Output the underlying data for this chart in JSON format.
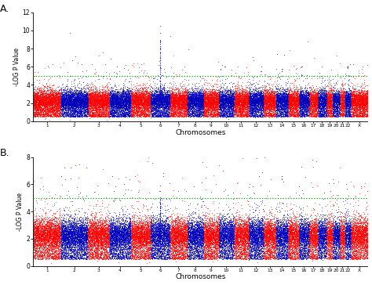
{
  "panel_A": {
    "label": "A.",
    "ylim": [
      0,
      12
    ],
    "yticks": [
      0,
      2,
      4,
      6,
      8,
      10,
      12
    ],
    "threshold": 5.0,
    "ylabel": "-LOG P Value",
    "xlabel": "Chromosomes",
    "peak_chrom": 6,
    "peak_value_max": 10.5,
    "peak_spread": 1.5,
    "extra_peaks": {
      "14": 5.8,
      "22": 6.1
    }
  },
  "panel_B": {
    "label": "B.",
    "ylim": [
      0,
      8
    ],
    "yticks": [
      0,
      2,
      4,
      6,
      8
    ],
    "threshold": 5.0,
    "ylabel": "-LOG P Value",
    "xlabel": "Chromosomes",
    "peak_chrom": 6,
    "peak_value_max": 5.9,
    "peak_spread": 1.2,
    "extra_peaks": {
      "14": 6.6
    }
  },
  "chromosomes": [
    1,
    2,
    3,
    4,
    5,
    6,
    7,
    8,
    9,
    10,
    11,
    12,
    13,
    14,
    15,
    16,
    17,
    18,
    19,
    20,
    21,
    22,
    "X"
  ],
  "chrom_sizes": [
    250,
    243,
    198,
    191,
    182,
    171,
    159,
    146,
    141,
    136,
    135,
    133,
    114,
    107,
    102,
    90,
    81,
    76,
    59,
    63,
    47,
    50,
    155
  ],
  "colors": [
    "#FF0000",
    "#0000BB"
  ],
  "threshold_color": "#00AA00",
  "bg_color": "#ffffff",
  "dot_size": 0.3,
  "n_snps": 2000,
  "base_mean": 2.3,
  "base_std": 0.55,
  "scatter_alpha": 0.9,
  "figsize": [
    4.74,
    3.64
  ],
  "dpi": 100
}
